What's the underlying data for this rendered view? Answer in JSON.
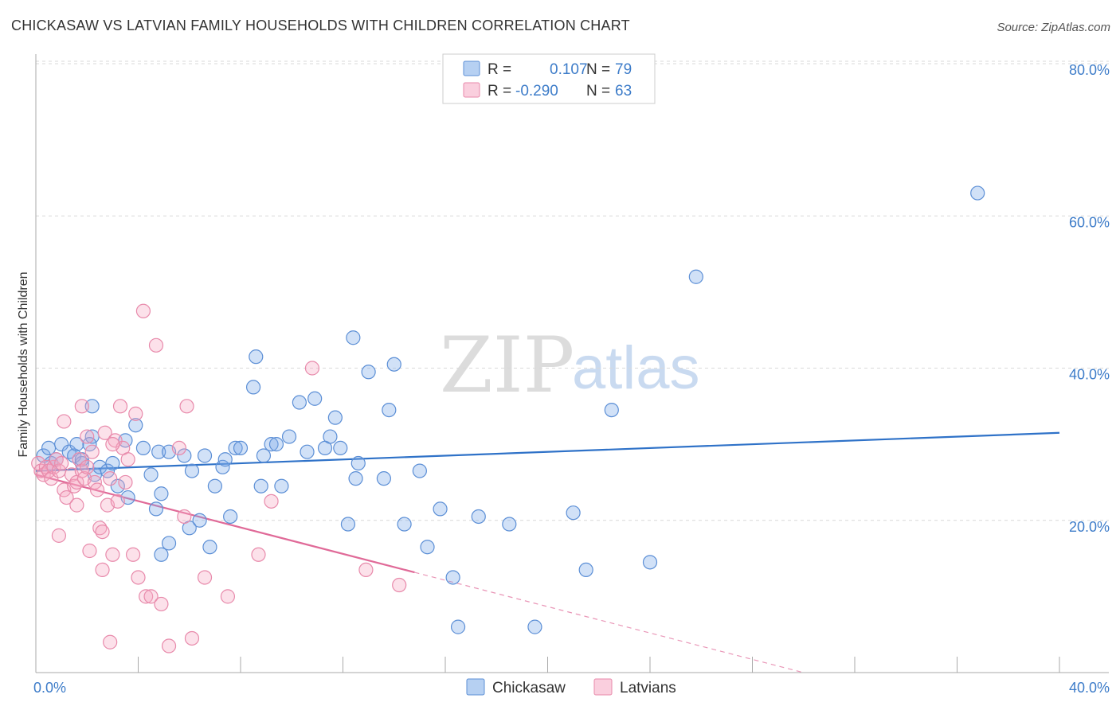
{
  "chart_data": {
    "type": "scatter",
    "title": "CHICKASAW VS LATVIAN FAMILY HOUSEHOLDS WITH CHILDREN CORRELATION CHART",
    "source": "Source: ZipAtlas.com",
    "watermark": {
      "zip": "ZIP",
      "atlas": "atlas"
    },
    "ylabel": "Family Households with Children",
    "xlim": [
      0,
      40
    ],
    "ylim": [
      0,
      80
    ],
    "x_tick_labels": [
      {
        "value": 0,
        "label": "0.0%"
      },
      {
        "value": 40,
        "label": "40.0%"
      }
    ],
    "x_minor_ticks": [
      0,
      4,
      8,
      12,
      16,
      20,
      24,
      28,
      32,
      36,
      40
    ],
    "y_ticks": [
      {
        "value": 20,
        "label": "20.0%"
      },
      {
        "value": 40,
        "label": "40.0%"
      },
      {
        "value": 60,
        "label": "60.0%"
      },
      {
        "value": 80,
        "label": "80.0%"
      }
    ],
    "grid": true,
    "legend_placement": "top-center",
    "series": [
      {
        "name": "Chickasaw",
        "color": "#7aaae8",
        "stroke": "#5c8fd6",
        "trend_color": "#2f72c8",
        "R": "0.107",
        "N": "79",
        "trend": {
          "x0": 0,
          "y0": 26.5,
          "x1": 40,
          "y1": 31.5,
          "solid_until": 40
        },
        "points": [
          [
            0.3,
            28.5
          ],
          [
            0.5,
            29.5
          ],
          [
            0.6,
            27.5
          ],
          [
            0.8,
            28.0
          ],
          [
            1.0,
            30.0
          ],
          [
            1.3,
            29.0
          ],
          [
            1.5,
            28.5
          ],
          [
            1.6,
            30.0
          ],
          [
            1.8,
            27.5
          ],
          [
            2.2,
            31.0
          ],
          [
            2.3,
            26.0
          ],
          [
            2.5,
            27.0
          ],
          [
            2.2,
            35.0
          ],
          [
            2.8,
            26.5
          ],
          [
            3.0,
            27.5
          ],
          [
            3.2,
            24.5
          ],
          [
            3.5,
            30.5
          ],
          [
            3.6,
            23.0
          ],
          [
            3.9,
            32.5
          ],
          [
            4.2,
            29.5
          ],
          [
            4.5,
            26.0
          ],
          [
            4.7,
            21.5
          ],
          [
            4.8,
            29.0
          ],
          [
            4.9,
            23.5
          ],
          [
            5.2,
            17.0
          ],
          [
            5.2,
            29.0
          ],
          [
            4.9,
            15.5
          ],
          [
            5.8,
            28.5
          ],
          [
            6.0,
            19.0
          ],
          [
            6.1,
            26.5
          ],
          [
            6.4,
            20.0
          ],
          [
            6.6,
            28.5
          ],
          [
            6.8,
            16.5
          ],
          [
            7.0,
            24.5
          ],
          [
            7.3,
            27.0
          ],
          [
            7.4,
            28.0
          ],
          [
            7.6,
            20.5
          ],
          [
            7.8,
            29.5
          ],
          [
            8.0,
            29.5
          ],
          [
            8.6,
            41.5
          ],
          [
            8.5,
            37.5
          ],
          [
            8.8,
            24.5
          ],
          [
            8.9,
            28.5
          ],
          [
            9.2,
            30.0
          ],
          [
            9.4,
            30.0
          ],
          [
            9.6,
            24.5
          ],
          [
            9.9,
            31.0
          ],
          [
            10.3,
            35.5
          ],
          [
            10.6,
            29.0
          ],
          [
            10.9,
            36.0
          ],
          [
            11.3,
            29.5
          ],
          [
            11.5,
            31.0
          ],
          [
            11.7,
            33.5
          ],
          [
            11.9,
            29.5
          ],
          [
            12.2,
            19.5
          ],
          [
            12.4,
            44.0
          ],
          [
            12.5,
            25.5
          ],
          [
            12.6,
            27.5
          ],
          [
            13.0,
            39.5
          ],
          [
            13.6,
            25.5
          ],
          [
            13.8,
            34.5
          ],
          [
            14.0,
            40.5
          ],
          [
            14.4,
            19.5
          ],
          [
            15.0,
            26.5
          ],
          [
            15.3,
            16.5
          ],
          [
            15.8,
            21.5
          ],
          [
            16.3,
            12.5
          ],
          [
            16.5,
            6.0
          ],
          [
            17.3,
            20.5
          ],
          [
            18.5,
            19.5
          ],
          [
            19.5,
            6.0
          ],
          [
            21.0,
            21.0
          ],
          [
            21.5,
            13.5
          ],
          [
            22.5,
            34.5
          ],
          [
            24.0,
            14.5
          ],
          [
            25.8,
            52.0
          ],
          [
            36.8,
            63.0
          ],
          [
            1.8,
            28.0
          ],
          [
            2.1,
            30.0
          ]
        ]
      },
      {
        "name": "Latvians",
        "color": "#f5a8c3",
        "stroke": "#e88aab",
        "trend_color": "#e06a98",
        "R": "-0.290",
        "N": "63",
        "trend": {
          "x0": 0,
          "y0": 26.0,
          "x1": 30,
          "y1": 0.0,
          "solid_until": 14.8
        },
        "points": [
          [
            0.1,
            27.5
          ],
          [
            0.2,
            26.5
          ],
          [
            0.3,
            26.0
          ],
          [
            0.4,
            27.0
          ],
          [
            0.5,
            26.5
          ],
          [
            0.6,
            25.5
          ],
          [
            0.7,
            27.0
          ],
          [
            0.8,
            28.0
          ],
          [
            0.9,
            26.5
          ],
          [
            1.0,
            27.5
          ],
          [
            0.9,
            18.0
          ],
          [
            1.1,
            24.0
          ],
          [
            1.1,
            33.0
          ],
          [
            1.2,
            23.0
          ],
          [
            1.4,
            26.0
          ],
          [
            1.5,
            24.5
          ],
          [
            1.6,
            25.0
          ],
          [
            1.6,
            22.0
          ],
          [
            1.7,
            28.0
          ],
          [
            1.8,
            26.5
          ],
          [
            1.9,
            25.5
          ],
          [
            2.0,
            27.0
          ],
          [
            1.8,
            35.0
          ],
          [
            2.0,
            31.0
          ],
          [
            2.1,
            16.0
          ],
          [
            2.2,
            29.0
          ],
          [
            2.3,
            25.0
          ],
          [
            2.4,
            24.0
          ],
          [
            2.5,
            19.0
          ],
          [
            2.6,
            18.5
          ],
          [
            2.6,
            13.5
          ],
          [
            2.7,
            31.5
          ],
          [
            2.8,
            22.0
          ],
          [
            2.9,
            25.5
          ],
          [
            3.0,
            15.5
          ],
          [
            3.1,
            30.5
          ],
          [
            3.2,
            22.5
          ],
          [
            3.3,
            35.0
          ],
          [
            3.4,
            29.5
          ],
          [
            3.5,
            25.0
          ],
          [
            3.6,
            28.0
          ],
          [
            3.8,
            15.5
          ],
          [
            3.9,
            34.0
          ],
          [
            4.0,
            12.5
          ],
          [
            4.2,
            47.5
          ],
          [
            4.3,
            10.0
          ],
          [
            4.5,
            10.0
          ],
          [
            4.7,
            43.0
          ],
          [
            4.9,
            9.0
          ],
          [
            5.2,
            3.5
          ],
          [
            5.6,
            29.5
          ],
          [
            5.8,
            20.5
          ],
          [
            5.9,
            35.0
          ],
          [
            6.1,
            4.5
          ],
          [
            6.6,
            12.5
          ],
          [
            7.5,
            10.0
          ],
          [
            8.7,
            15.5
          ],
          [
            9.2,
            22.5
          ],
          [
            10.8,
            40.0
          ],
          [
            12.9,
            13.5
          ],
          [
            14.2,
            11.5
          ],
          [
            2.9,
            4.0
          ],
          [
            3.0,
            30.0
          ]
        ]
      }
    ]
  }
}
